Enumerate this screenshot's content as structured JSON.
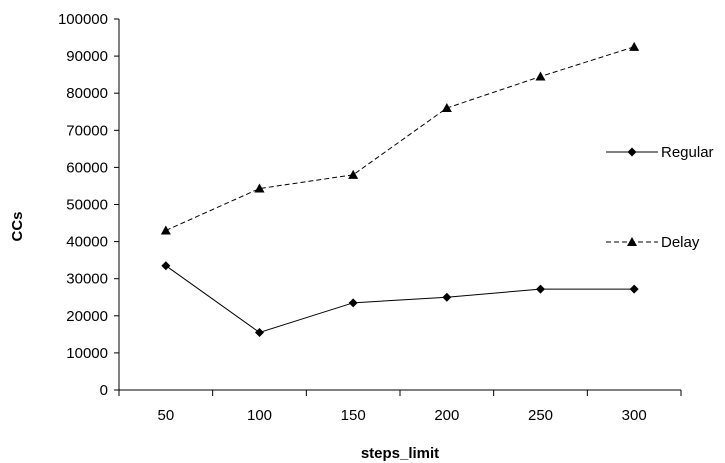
{
  "chart_data": {
    "type": "line",
    "title": "",
    "xlabel": "steps_limit",
    "ylabel": "CCs",
    "categories": [
      "50",
      "100",
      "150",
      "200",
      "250",
      "300"
    ],
    "ylim": [
      0,
      100000
    ],
    "yticks": [
      "0",
      "10000",
      "20000",
      "30000",
      "40000",
      "50000",
      "60000",
      "70000",
      "80000",
      "90000",
      "100000"
    ],
    "grid": false,
    "legend_position": "right",
    "series": [
      {
        "name": "Regular",
        "values": [
          33500,
          15500,
          23500,
          25000,
          27200,
          27200
        ],
        "marker": "diamond",
        "line_style": "solid",
        "color": "#000000"
      },
      {
        "name": "Delay",
        "values": [
          43000,
          54300,
          58000,
          76000,
          84500,
          92500
        ],
        "marker": "triangle",
        "line_style": "dashed",
        "color": "#000000"
      }
    ]
  }
}
